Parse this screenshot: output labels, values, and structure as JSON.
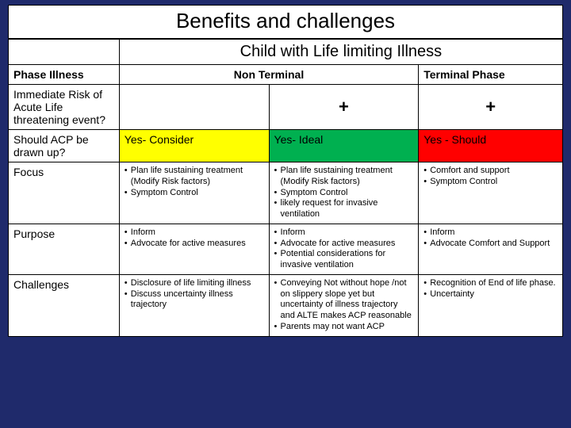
{
  "title": "Benefits and challenges",
  "superHeader": "Child with Life limiting Illness",
  "headers": {
    "phase": "Phase Illness",
    "nonTerminal": "Non Terminal",
    "terminal": "Terminal Phase"
  },
  "colors": {
    "background": "#1f2a6b",
    "yellow": "#ffff00",
    "green": "#00b050",
    "red": "#ff0000",
    "cellBg": "#ffffff",
    "border": "#000000"
  },
  "rows": {
    "risk": {
      "label": "Immediate Risk of Acute Life threatening event?",
      "c1": "",
      "c2": "+",
      "c3": "+"
    },
    "acp": {
      "label": "Should ACP be drawn up?",
      "c1": "Yes-  Consider",
      "c2": "Yes-    Ideal",
      "c3": "Yes - Should"
    },
    "focus": {
      "label": "Focus",
      "c1": [
        "Plan life sustaining treatment (Modify Risk factors)",
        "Symptom Control"
      ],
      "c2": [
        "Plan life sustaining treatment (Modify Risk factors)",
        "Symptom Control",
        "likely request for invasive ventilation"
      ],
      "c3": [
        "Comfort and support",
        "Symptom Control"
      ]
    },
    "purpose": {
      "label": "Purpose",
      "c1": [
        "Inform",
        "Advocate for active measures"
      ],
      "c2": [
        "Inform",
        "Advocate  for active measures",
        "Potential considerations for invasive  ventilation"
      ],
      "c3": [
        "Inform",
        "Advocate Comfort and Support"
      ]
    },
    "challenges": {
      "label": "Challenges",
      "c1": [
        "Disclosure of life limiting illness",
        "Discuss uncertainty  illness trajectory"
      ],
      "c2": [
        "Conveying Not without hope /not on slippery slope yet but uncertainty of illness trajectory and  ALTE makes ACP reasonable",
        "Parents may not want ACP"
      ],
      "c3": [
        "Recognition of End of life phase.",
        "Uncertainty"
      ]
    }
  }
}
